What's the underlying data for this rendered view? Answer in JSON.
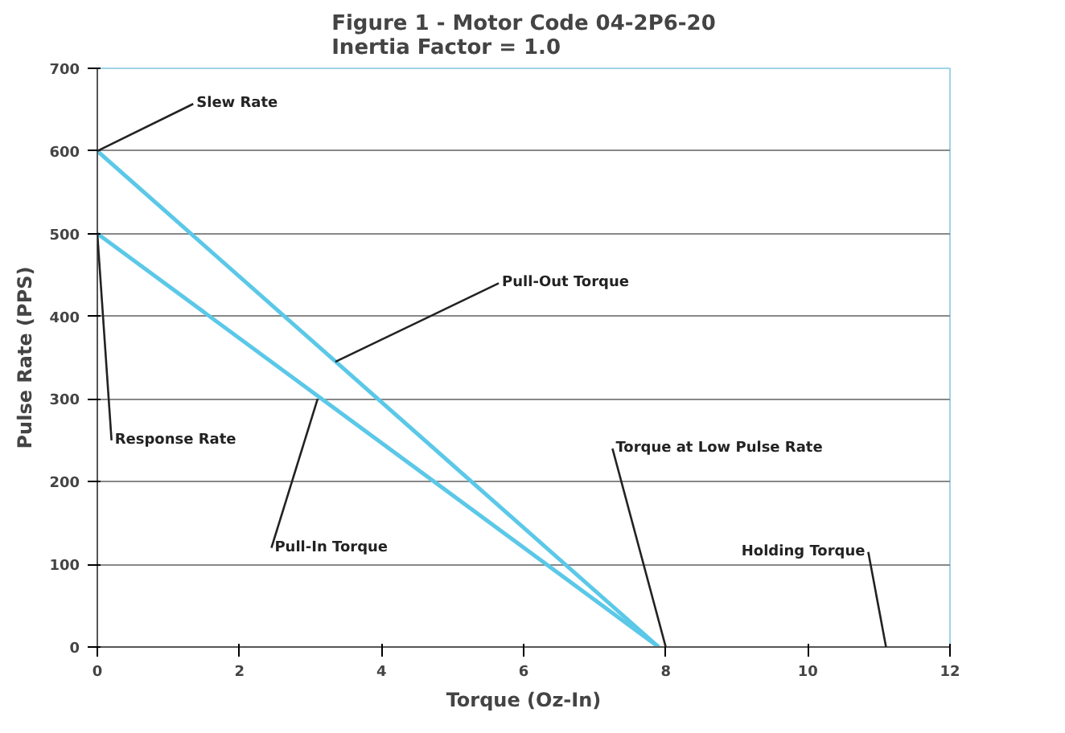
{
  "chart_data": {
    "type": "line",
    "title": "Figure 1 - Motor Code 04-2P6-20\nInertia Factor = 1.0",
    "xlabel": "Torque (Oz-In)",
    "ylabel": "Pulse Rate (PPS)",
    "x": [
      0,
      7.9
    ],
    "series": [
      {
        "color": "#5bc8e8",
        "values": [
          600,
          0
        ]
      },
      {
        "color": "#5bc8e8",
        "values": [
          500,
          0
        ]
      }
    ],
    "xlim": [
      0,
      12
    ],
    "xticks": [
      0,
      2,
      4,
      6,
      8,
      10,
      12
    ],
    "ylim": [
      0,
      700
    ],
    "yticks": [
      0,
      100,
      200,
      300,
      400,
      500,
      600,
      700
    ],
    "grid": "y",
    "annotations": [
      {
        "text": "Slew Rate",
        "x": 0,
        "y": 600
      },
      {
        "text": "Pull-Out Torque",
        "x": 3.35,
        "y": 345
      },
      {
        "text": "Response Rate",
        "x": 0,
        "y": 500
      },
      {
        "text": "Pull-In Torque",
        "x": 3.1,
        "y": 300
      },
      {
        "text": "Torque at Low Pulse Rate",
        "x": 8,
        "y": 0
      },
      "Holding Torque"
    ]
  }
}
